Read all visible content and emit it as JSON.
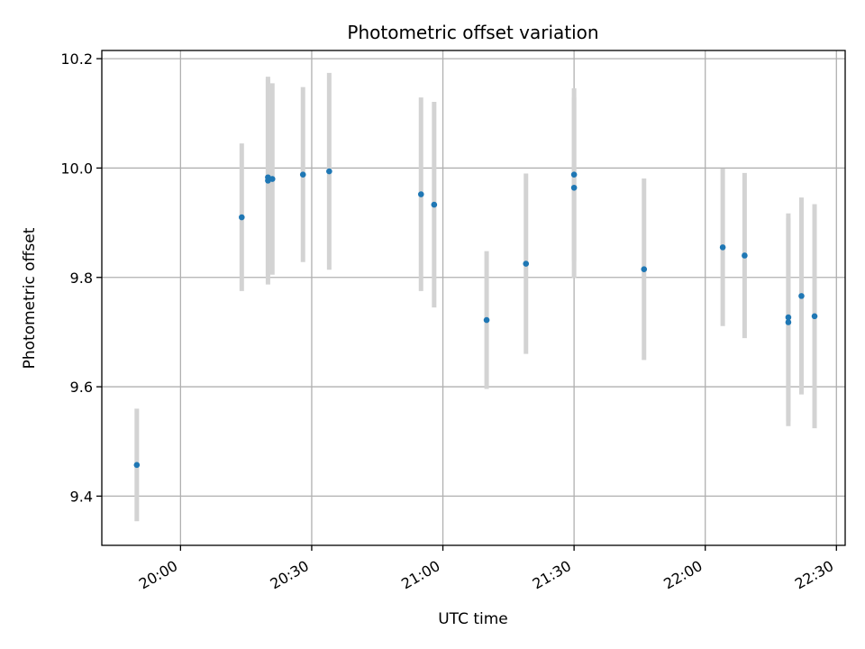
{
  "chart_data": {
    "type": "scatter",
    "title": "Photometric offset variation",
    "xlabel": "UTC time",
    "ylabel": "Photometric offset",
    "x_type": "time",
    "xlim": [
      "19:42",
      "22:32"
    ],
    "ylim": [
      9.31,
      10.215
    ],
    "x_ticks": [
      "20:00",
      "20:30",
      "21:00",
      "21:30",
      "22:00",
      "22:30"
    ],
    "y_ticks": [
      "9.4",
      "9.6",
      "9.8",
      "10.0",
      "10.2"
    ],
    "grid": true,
    "colors": {
      "point": "#1f77b4",
      "errorbar": "#d3d3d3",
      "grid": "#b0b0b0"
    },
    "points": [
      {
        "x": "19:50",
        "y": 9.457,
        "yerr": 0.103
      },
      {
        "x": "20:14",
        "y": 9.91,
        "yerr": 0.135
      },
      {
        "x": "20:20",
        "y": 9.977,
        "yerr": 0.19
      },
      {
        "x": "20:20",
        "y": 9.983,
        "yerr": 0.18
      },
      {
        "x": "20:21",
        "y": 9.98,
        "yerr": 0.175
      },
      {
        "x": "20:28",
        "y": 9.988,
        "yerr": 0.16
      },
      {
        "x": "20:34",
        "y": 9.994,
        "yerr": 0.18
      },
      {
        "x": "20:55",
        "y": 9.952,
        "yerr": 0.177
      },
      {
        "x": "20:58",
        "y": 9.933,
        "yerr": 0.188
      },
      {
        "x": "21:10",
        "y": 9.722,
        "yerr": 0.126
      },
      {
        "x": "21:19",
        "y": 9.825,
        "yerr": 0.165
      },
      {
        "x": "21:30",
        "y": 9.964,
        "yerr": 0.165
      },
      {
        "x": "21:30",
        "y": 9.988,
        "yerr": 0.158
      },
      {
        "x": "21:46",
        "y": 9.815,
        "yerr": 0.166
      },
      {
        "x": "22:04",
        "y": 9.855,
        "yerr": 0.144
      },
      {
        "x": "22:09",
        "y": 9.84,
        "yerr": 0.151
      },
      {
        "x": "22:19",
        "y": 9.727,
        "yerr": 0.19
      },
      {
        "x": "22:19",
        "y": 9.718,
        "yerr": 0.19
      },
      {
        "x": "22:22",
        "y": 9.766,
        "yerr": 0.18
      },
      {
        "x": "22:25",
        "y": 9.729,
        "yerr": 0.205
      }
    ]
  }
}
